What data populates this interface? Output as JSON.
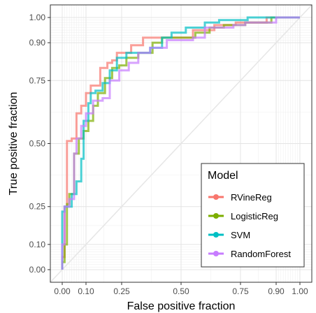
{
  "chart_data": {
    "type": "line",
    "xlabel": "False positive fraction",
    "ylabel": "True positive fraction",
    "xlim": [
      -0.05,
      1.05
    ],
    "ylim": [
      -0.05,
      1.05
    ],
    "x_ticks": [
      0.0,
      0.1,
      0.25,
      0.5,
      0.75,
      0.9,
      1.0
    ],
    "x_tick_labels": [
      "0.00",
      "0.10",
      "0.25",
      "0.50",
      "0.75",
      "0.90",
      "1.00"
    ],
    "y_ticks": [
      0.0,
      0.1,
      0.25,
      0.5,
      0.75,
      0.9,
      1.0
    ],
    "y_tick_labels": [
      "0.00",
      "0.10",
      "0.25",
      "0.50",
      "0.75",
      "0.90",
      "1.00"
    ],
    "grid": true,
    "diagonal_reference": true,
    "legend": {
      "title": "Model",
      "placement": "bottom-right",
      "entries": [
        "RVineReg",
        "LogisticReg",
        "SVM",
        "RandomForest"
      ]
    },
    "series": [
      {
        "name": "RVineReg",
        "color": "#F8766D",
        "points": [
          [
            0.0,
            0.0
          ],
          [
            0.0,
            0.05
          ],
          [
            0.01,
            0.05
          ],
          [
            0.01,
            0.25
          ],
          [
            0.02,
            0.25
          ],
          [
            0.02,
            0.51
          ],
          [
            0.04,
            0.51
          ],
          [
            0.04,
            0.52
          ],
          [
            0.06,
            0.52
          ],
          [
            0.06,
            0.62
          ],
          [
            0.08,
            0.62
          ],
          [
            0.08,
            0.65
          ],
          [
            0.1,
            0.65
          ],
          [
            0.1,
            0.7
          ],
          [
            0.12,
            0.7
          ],
          [
            0.12,
            0.73
          ],
          [
            0.16,
            0.73
          ],
          [
            0.16,
            0.8
          ],
          [
            0.19,
            0.8
          ],
          [
            0.19,
            0.82
          ],
          [
            0.21,
            0.82
          ],
          [
            0.21,
            0.83
          ],
          [
            0.23,
            0.83
          ],
          [
            0.23,
            0.86
          ],
          [
            0.29,
            0.86
          ],
          [
            0.29,
            0.89
          ],
          [
            0.34,
            0.89
          ],
          [
            0.34,
            0.92
          ],
          [
            0.55,
            0.92
          ],
          [
            0.55,
            0.95
          ],
          [
            0.64,
            0.95
          ],
          [
            0.64,
            0.97
          ],
          [
            0.73,
            0.97
          ],
          [
            0.73,
            0.98
          ],
          [
            0.86,
            0.98
          ],
          [
            0.86,
            1.0
          ],
          [
            1.0,
            1.0
          ]
        ]
      },
      {
        "name": "LogisticReg",
        "color": "#7CAE00",
        "points": [
          [
            0.0,
            0.0
          ],
          [
            0.0,
            0.03
          ],
          [
            0.01,
            0.03
          ],
          [
            0.01,
            0.1
          ],
          [
            0.02,
            0.1
          ],
          [
            0.02,
            0.26
          ],
          [
            0.03,
            0.26
          ],
          [
            0.03,
            0.3
          ],
          [
            0.05,
            0.3
          ],
          [
            0.05,
            0.46
          ],
          [
            0.07,
            0.46
          ],
          [
            0.07,
            0.52
          ],
          [
            0.09,
            0.52
          ],
          [
            0.09,
            0.55
          ],
          [
            0.11,
            0.55
          ],
          [
            0.11,
            0.59
          ],
          [
            0.13,
            0.59
          ],
          [
            0.13,
            0.65
          ],
          [
            0.15,
            0.65
          ],
          [
            0.15,
            0.7
          ],
          [
            0.18,
            0.7
          ],
          [
            0.18,
            0.76
          ],
          [
            0.21,
            0.76
          ],
          [
            0.21,
            0.8
          ],
          [
            0.24,
            0.8
          ],
          [
            0.24,
            0.81
          ],
          [
            0.27,
            0.81
          ],
          [
            0.27,
            0.84
          ],
          [
            0.32,
            0.84
          ],
          [
            0.32,
            0.86
          ],
          [
            0.38,
            0.86
          ],
          [
            0.38,
            0.9
          ],
          [
            0.42,
            0.9
          ],
          [
            0.42,
            0.92
          ],
          [
            0.56,
            0.92
          ],
          [
            0.56,
            0.94
          ],
          [
            0.62,
            0.94
          ],
          [
            0.62,
            0.96
          ],
          [
            0.68,
            0.96
          ],
          [
            0.68,
            0.97
          ],
          [
            0.77,
            0.97
          ],
          [
            0.77,
            0.98
          ],
          [
            0.88,
            0.98
          ],
          [
            0.88,
            1.0
          ],
          [
            1.0,
            1.0
          ]
        ]
      },
      {
        "name": "SVM",
        "color": "#00BFC4",
        "points": [
          [
            0.0,
            0.0
          ],
          [
            0.0,
            0.23
          ],
          [
            0.01,
            0.23
          ],
          [
            0.01,
            0.25
          ],
          [
            0.04,
            0.25
          ],
          [
            0.04,
            0.3
          ],
          [
            0.06,
            0.3
          ],
          [
            0.06,
            0.35
          ],
          [
            0.08,
            0.35
          ],
          [
            0.08,
            0.44
          ],
          [
            0.09,
            0.44
          ],
          [
            0.09,
            0.59
          ],
          [
            0.11,
            0.59
          ],
          [
            0.11,
            0.66
          ],
          [
            0.12,
            0.66
          ],
          [
            0.12,
            0.7
          ],
          [
            0.14,
            0.7
          ],
          [
            0.14,
            0.71
          ],
          [
            0.17,
            0.71
          ],
          [
            0.17,
            0.74
          ],
          [
            0.2,
            0.74
          ],
          [
            0.2,
            0.79
          ],
          [
            0.23,
            0.79
          ],
          [
            0.23,
            0.84
          ],
          [
            0.27,
            0.84
          ],
          [
            0.27,
            0.86
          ],
          [
            0.37,
            0.86
          ],
          [
            0.37,
            0.88
          ],
          [
            0.42,
            0.88
          ],
          [
            0.42,
            0.92
          ],
          [
            0.46,
            0.92
          ],
          [
            0.46,
            0.94
          ],
          [
            0.52,
            0.94
          ],
          [
            0.52,
            0.96
          ],
          [
            0.6,
            0.96
          ],
          [
            0.6,
            0.98
          ],
          [
            0.66,
            0.98
          ],
          [
            0.66,
            0.99
          ],
          [
            0.78,
            0.99
          ],
          [
            0.78,
            1.0
          ],
          [
            1.0,
            1.0
          ]
        ]
      },
      {
        "name": "RandomForest",
        "color": "#C77CFF",
        "points": [
          [
            0.0,
            0.0
          ],
          [
            0.0,
            0.1
          ],
          [
            0.01,
            0.1
          ],
          [
            0.01,
            0.25
          ],
          [
            0.03,
            0.25
          ],
          [
            0.03,
            0.28
          ],
          [
            0.05,
            0.28
          ],
          [
            0.05,
            0.46
          ],
          [
            0.06,
            0.46
          ],
          [
            0.06,
            0.52
          ],
          [
            0.08,
            0.52
          ],
          [
            0.08,
            0.57
          ],
          [
            0.1,
            0.57
          ],
          [
            0.1,
            0.62
          ],
          [
            0.13,
            0.62
          ],
          [
            0.13,
            0.67
          ],
          [
            0.17,
            0.67
          ],
          [
            0.17,
            0.68
          ],
          [
            0.2,
            0.68
          ],
          [
            0.2,
            0.75
          ],
          [
            0.24,
            0.75
          ],
          [
            0.24,
            0.79
          ],
          [
            0.28,
            0.79
          ],
          [
            0.28,
            0.82
          ],
          [
            0.32,
            0.82
          ],
          [
            0.32,
            0.86
          ],
          [
            0.37,
            0.86
          ],
          [
            0.37,
            0.88
          ],
          [
            0.44,
            0.88
          ],
          [
            0.44,
            0.91
          ],
          [
            0.55,
            0.91
          ],
          [
            0.55,
            0.92
          ],
          [
            0.6,
            0.92
          ],
          [
            0.6,
            0.96
          ],
          [
            0.72,
            0.96
          ],
          [
            0.72,
            0.97
          ],
          [
            0.77,
            0.97
          ],
          [
            0.77,
            0.98
          ],
          [
            0.9,
            0.98
          ],
          [
            0.9,
            1.0
          ],
          [
            1.0,
            1.0
          ]
        ]
      }
    ]
  }
}
